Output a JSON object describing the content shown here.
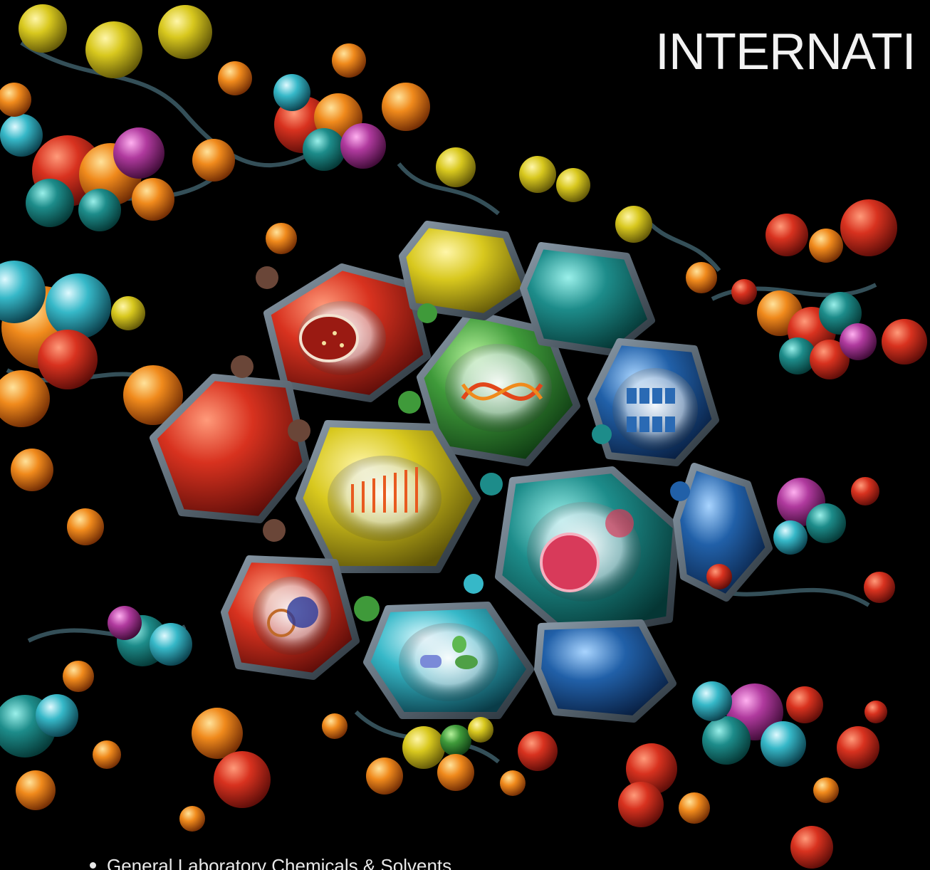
{
  "headline": "INTERNATI",
  "bullets": [
    "General Laboratory Chemicals & Solvents"
  ],
  "artwork": {
    "subject": "molecular-honeycomb-illustration",
    "background_color": "#000000",
    "palette": {
      "red": "#c0261c",
      "orange": "#f08a1c",
      "yellow": "#d8c81e",
      "green": "#3f9a3a",
      "teal": "#1d8c8a",
      "blue": "#2160a8",
      "cyan": "#36b8c8",
      "magenta": "#b03a9e",
      "purple": "#7b3fa6"
    },
    "cell_icons": [
      "petri-dish-icon",
      "dna-helix-icon",
      "warehouse-drums-icon",
      "test-tube-rack-icon",
      "cell-culture-icon",
      "lab-glassware-icon",
      "plant-research-icon"
    ]
  }
}
